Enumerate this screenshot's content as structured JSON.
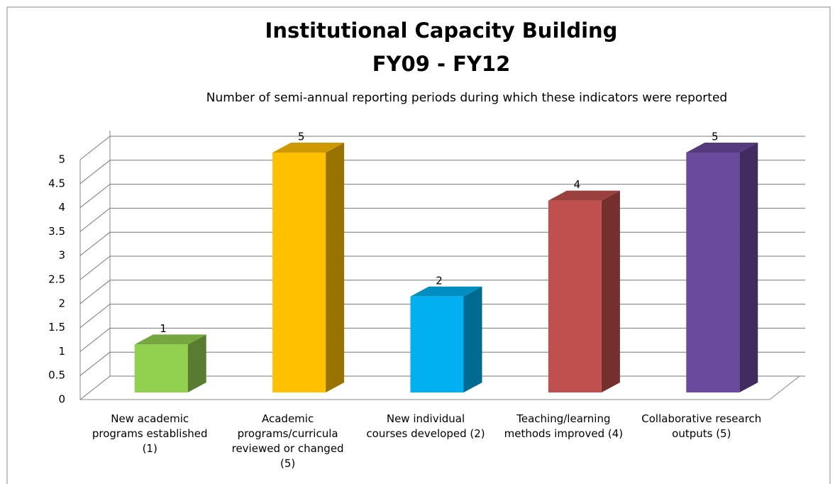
{
  "chart_data": {
    "type": "bar3d",
    "title": [
      "Institutional Capacity Building",
      "FY09 - FY12"
    ],
    "subtitle": "Number of semi-annual reporting periods during which these indicators were reported",
    "categories": [
      "New academic programs established (1)",
      "Academic programs/curricula reviewed or changed (5)",
      "New individual courses developed (2)",
      "Teaching/learning methods improved (4)",
      "Collaborative research outputs (5)"
    ],
    "values": [
      1,
      5,
      2,
      4,
      5
    ],
    "colors": [
      "#92d050",
      "#ffc000",
      "#00b0f0",
      "#c0504d",
      "#6a4a9c"
    ],
    "ylim": [
      0,
      5
    ],
    "yticks": [
      0,
      0.5,
      1,
      1.5,
      2,
      2.5,
      3,
      3.5,
      4,
      4.5,
      5
    ],
    "grid": true
  }
}
